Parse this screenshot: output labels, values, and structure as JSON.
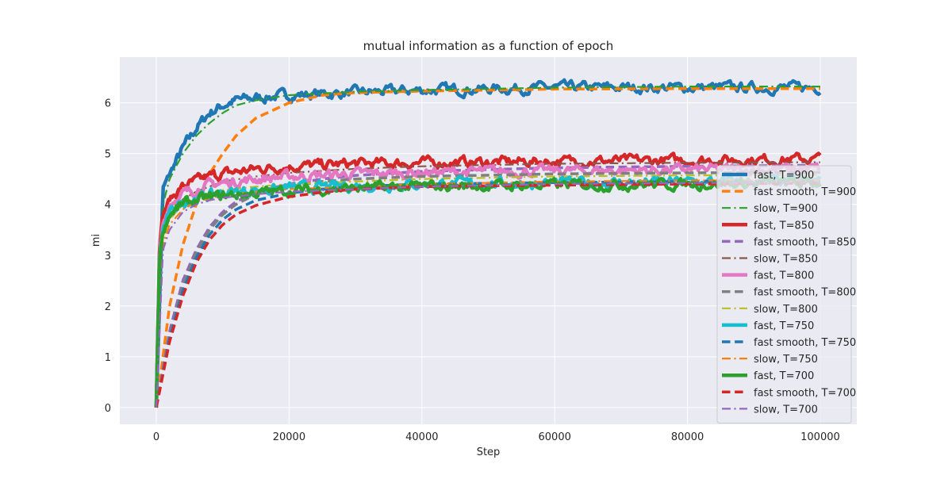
{
  "chart_data": {
    "type": "line",
    "title": "mutual information as a function of epoch",
    "xlabel": "Step",
    "ylabel": "mi",
    "xlim": [
      -5500,
      105500
    ],
    "ylim": [
      -0.33,
      6.9
    ],
    "xticks": [
      0,
      20000,
      40000,
      60000,
      80000,
      100000
    ],
    "xtick_labels": [
      "0",
      "20000",
      "40000",
      "60000",
      "80000",
      "100000"
    ],
    "yticks": [
      0,
      1,
      2,
      3,
      4,
      5,
      6
    ],
    "ytick_labels": [
      "0",
      "1",
      "2",
      "3",
      "4",
      "5",
      "6"
    ],
    "grid": true,
    "legend_position": "lower-right",
    "series": [
      {
        "name": "fast, T=900",
        "color": "#1f77b4",
        "style": "solid",
        "width": 4.5,
        "noisy": true,
        "final": 6.3,
        "tau": 3500,
        "x": [
          0,
          1000,
          2000,
          4000,
          6000,
          8000,
          10000,
          12000,
          15000,
          20000,
          30000,
          40000,
          60000,
          80000,
          100000
        ],
        "y": [
          0,
          4.3,
          4.6,
          5.1,
          5.5,
          5.8,
          5.95,
          6.05,
          6.1,
          6.15,
          6.2,
          6.25,
          6.3,
          6.3,
          6.3
        ]
      },
      {
        "name": "fast smooth, T=900",
        "color": "#ff7f0e",
        "style": "dashed",
        "width": 3.5,
        "x": [
          0,
          2000,
          4000,
          6000,
          8000,
          10000,
          12000,
          15000,
          20000,
          25000,
          30000,
          40000,
          60000,
          80000,
          100000
        ],
        "y": [
          0,
          2.0,
          3.2,
          4.0,
          4.6,
          5.0,
          5.35,
          5.7,
          6.0,
          6.15,
          6.2,
          6.23,
          6.27,
          6.28,
          6.28
        ]
      },
      {
        "name": "slow, T=900",
        "color": "#2ca02c",
        "style": "dashdot",
        "width": 2.2,
        "x": [
          0,
          1000,
          2000,
          4000,
          6000,
          8000,
          10000,
          12000,
          15000,
          20000,
          30000,
          40000,
          60000,
          80000,
          100000
        ],
        "y": [
          0,
          4.0,
          4.5,
          5.0,
          5.35,
          5.6,
          5.8,
          5.95,
          6.05,
          6.15,
          6.22,
          6.25,
          6.3,
          6.32,
          6.32
        ]
      },
      {
        "name": "fast, T=850",
        "color": "#d62728",
        "style": "solid",
        "width": 4.5,
        "noisy": true,
        "x": [
          0,
          500,
          1000,
          2000,
          4000,
          6000,
          8000,
          10000,
          15000,
          20000,
          30000,
          40000,
          60000,
          80000,
          100000
        ],
        "y": [
          0,
          3.3,
          3.8,
          4.1,
          4.35,
          4.45,
          4.55,
          4.6,
          4.7,
          4.75,
          4.8,
          4.82,
          4.85,
          4.87,
          4.9
        ]
      },
      {
        "name": "fast smooth, T=850",
        "color": "#9467bd",
        "style": "dashed",
        "width": 3.5,
        "x": [
          0,
          2000,
          4000,
          6000,
          8000,
          10000,
          12000,
          15000,
          20000,
          25000,
          30000,
          40000,
          60000,
          80000,
          100000
        ],
        "y": [
          0,
          1.5,
          2.5,
          3.1,
          3.55,
          3.85,
          4.05,
          4.25,
          4.4,
          4.5,
          4.57,
          4.65,
          4.72,
          4.75,
          4.77
        ]
      },
      {
        "name": "slow, T=850",
        "color": "#8c564b",
        "style": "dashdot",
        "width": 2.2,
        "x": [
          0,
          1000,
          2000,
          4000,
          6000,
          8000,
          10000,
          15000,
          20000,
          30000,
          40000,
          60000,
          80000,
          100000
        ],
        "y": [
          0,
          3.4,
          3.8,
          4.1,
          4.25,
          4.35,
          4.45,
          4.55,
          4.62,
          4.7,
          4.75,
          4.8,
          4.82,
          4.83
        ]
      },
      {
        "name": "fast, T=800",
        "color": "#e377c2",
        "style": "solid",
        "width": 4.5,
        "noisy": true,
        "x": [
          0,
          500,
          1000,
          2000,
          4000,
          6000,
          8000,
          10000,
          15000,
          20000,
          30000,
          40000,
          60000,
          80000,
          100000
        ],
        "y": [
          0,
          3.0,
          3.6,
          4.0,
          4.2,
          4.3,
          4.38,
          4.42,
          4.5,
          4.55,
          4.6,
          4.63,
          4.66,
          4.68,
          4.7
        ]
      },
      {
        "name": "fast smooth, T=800",
        "color": "#7f7f7f",
        "style": "dashed",
        "width": 3.5,
        "x": [
          0,
          2000,
          4000,
          6000,
          8000,
          10000,
          12000,
          15000,
          20000,
          25000,
          30000,
          40000,
          60000,
          80000,
          100000
        ],
        "y": [
          0,
          1.4,
          2.4,
          3.05,
          3.5,
          3.8,
          4.0,
          4.2,
          4.35,
          4.45,
          4.5,
          4.55,
          4.6,
          4.62,
          4.63
        ]
      },
      {
        "name": "slow, T=800",
        "color": "#bcbd22",
        "style": "dashdot",
        "width": 2.2,
        "x": [
          0,
          1000,
          2000,
          4000,
          6000,
          8000,
          10000,
          15000,
          20000,
          30000,
          40000,
          60000,
          80000,
          100000
        ],
        "y": [
          0,
          3.3,
          3.7,
          4.0,
          4.15,
          4.22,
          4.28,
          4.35,
          4.4,
          4.45,
          4.5,
          4.55,
          4.57,
          4.58
        ]
      },
      {
        "name": "fast, T=750",
        "color": "#17becf",
        "style": "solid",
        "width": 4.5,
        "noisy": true,
        "x": [
          0,
          500,
          1000,
          2000,
          4000,
          6000,
          8000,
          10000,
          15000,
          20000,
          30000,
          40000,
          60000,
          80000,
          100000
        ],
        "y": [
          0,
          3.0,
          3.5,
          3.85,
          4.05,
          4.12,
          4.18,
          4.22,
          4.28,
          4.32,
          4.36,
          4.4,
          4.42,
          4.44,
          4.45
        ]
      },
      {
        "name": "fast smooth, T=750",
        "color": "#1f77b4",
        "style": "dashed",
        "width": 3.5,
        "x": [
          0,
          2000,
          4000,
          6000,
          8000,
          10000,
          12000,
          15000,
          20000,
          25000,
          30000,
          40000,
          60000,
          80000,
          100000
        ],
        "y": [
          0,
          1.35,
          2.3,
          2.95,
          3.4,
          3.7,
          3.9,
          4.08,
          4.22,
          4.3,
          4.35,
          4.4,
          4.43,
          4.45,
          4.46
        ]
      },
      {
        "name": "slow, T=750",
        "color": "#ff7f0e",
        "style": "dashdot",
        "width": 2.2,
        "x": [
          0,
          1000,
          2000,
          4000,
          6000,
          8000,
          10000,
          15000,
          20000,
          30000,
          40000,
          60000,
          80000,
          100000
        ],
        "y": [
          0,
          3.2,
          3.6,
          3.9,
          4.05,
          4.12,
          4.18,
          4.25,
          4.3,
          4.35,
          4.4,
          4.45,
          4.47,
          4.48
        ]
      },
      {
        "name": "fast, T=700",
        "color": "#2ca02c",
        "style": "solid",
        "width": 4.5,
        "noisy": true,
        "x": [
          0,
          500,
          1000,
          2000,
          4000,
          6000,
          8000,
          10000,
          15000,
          20000,
          30000,
          40000,
          60000,
          80000,
          100000
        ],
        "y": [
          0,
          3.0,
          3.45,
          3.8,
          4.0,
          4.08,
          4.13,
          4.17,
          4.22,
          4.27,
          4.32,
          4.35,
          4.38,
          4.4,
          4.42
        ]
      },
      {
        "name": "fast smooth, T=700",
        "color": "#d62728",
        "style": "dashed",
        "width": 3.5,
        "x": [
          0,
          2000,
          4000,
          6000,
          8000,
          10000,
          12000,
          15000,
          20000,
          25000,
          30000,
          40000,
          60000,
          80000,
          100000
        ],
        "y": [
          0,
          1.3,
          2.2,
          2.85,
          3.3,
          3.6,
          3.8,
          3.98,
          4.15,
          4.24,
          4.3,
          4.35,
          4.38,
          4.4,
          4.42
        ]
      },
      {
        "name": "slow, T=700",
        "color": "#9467bd",
        "style": "dashdot",
        "width": 2.2,
        "x": [
          0,
          1000,
          2000,
          4000,
          6000,
          8000,
          10000,
          15000,
          20000,
          30000,
          40000,
          60000,
          80000,
          100000
        ],
        "y": [
          0,
          3.1,
          3.5,
          3.85,
          4.0,
          4.08,
          4.13,
          4.2,
          4.25,
          4.3,
          4.35,
          4.4,
          4.42,
          4.43
        ]
      }
    ]
  }
}
